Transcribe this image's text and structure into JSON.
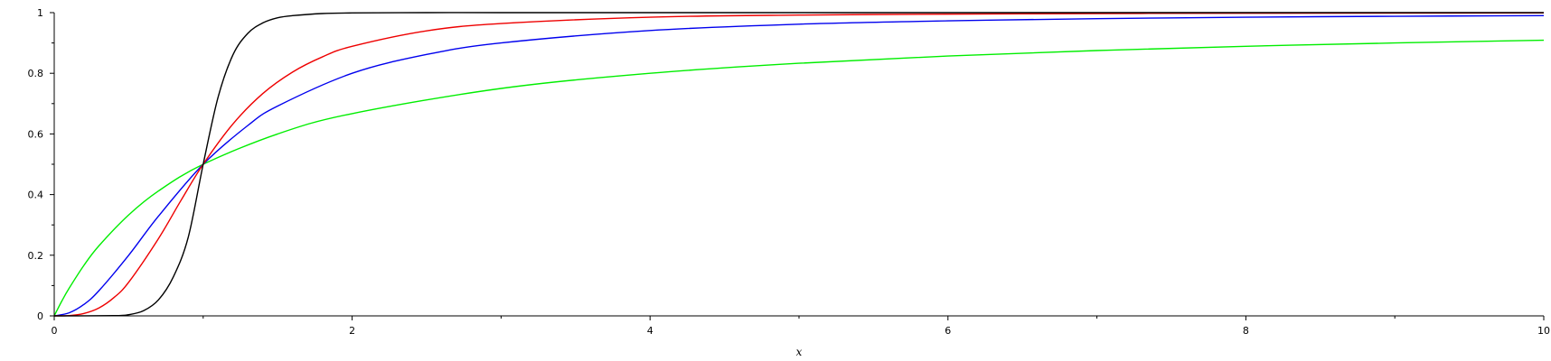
{
  "chart_data": {
    "type": "line",
    "title": "",
    "xlabel": "x",
    "ylabel": "",
    "xlim": [
      0,
      10
    ],
    "ylim": [
      0,
      1
    ],
    "x_ticks": [
      0,
      2,
      4,
      6,
      8,
      10
    ],
    "x_tick_labels": [
      "0",
      "2",
      "4",
      "6",
      "8",
      "10"
    ],
    "x_minor_ticks": [
      1,
      3,
      5,
      7,
      9
    ],
    "y_ticks": [
      0,
      0.2,
      0.4,
      0.6,
      0.8,
      1
    ],
    "y_tick_labels": [
      "0",
      "0.2",
      "0.4",
      "0.6",
      "0.8",
      "1"
    ],
    "y_minor_ticks": [
      0.1,
      0.3,
      0.5,
      0.7,
      0.9
    ],
    "grid": false,
    "legend": "none",
    "series": [
      {
        "color": "#00ee00",
        "x": [
          0,
          0.05,
          0.1,
          0.2,
          0.3,
          0.5,
          0.7,
          1,
          1.5,
          2,
          3,
          4,
          5,
          6,
          7,
          8,
          9,
          10
        ],
        "y": [
          0,
          0.048,
          0.091,
          0.167,
          0.231,
          0.333,
          0.412,
          0.5,
          0.6,
          0.667,
          0.75,
          0.8,
          0.833,
          0.857,
          0.875,
          0.889,
          0.9,
          0.909
        ]
      },
      {
        "color": "#0000ee",
        "x": [
          0,
          0.1,
          0.2,
          0.3,
          0.5,
          0.7,
          1,
          1.3,
          1.5,
          2,
          2.5,
          3,
          4,
          5,
          6,
          7,
          8,
          9,
          10
        ],
        "y": [
          0,
          0.01,
          0.038,
          0.083,
          0.2,
          0.329,
          0.5,
          0.628,
          0.692,
          0.8,
          0.862,
          0.9,
          0.941,
          0.962,
          0.973,
          0.98,
          0.985,
          0.988,
          0.99
        ]
      },
      {
        "color": "#ee0000",
        "x": [
          0,
          0.1,
          0.2,
          0.3,
          0.4,
          0.5,
          0.7,
          0.85,
          1,
          1.2,
          1.4,
          1.6,
          1.8,
          2,
          2.5,
          3,
          4,
          5,
          6,
          7,
          8,
          10
        ],
        "y": [
          0,
          0.001,
          0.008,
          0.026,
          0.06,
          0.111,
          0.255,
          0.38,
          0.5,
          0.633,
          0.733,
          0.804,
          0.854,
          0.889,
          0.94,
          0.964,
          0.985,
          0.992,
          0.995,
          0.997,
          0.998,
          0.999
        ]
      },
      {
        "color": "#000000",
        "x": [
          0,
          0.4,
          0.5,
          0.6,
          0.7,
          0.8,
          0.9,
          1,
          1.1,
          1.2,
          1.3,
          1.4,
          1.5,
          1.6,
          1.8,
          2,
          2.5,
          3,
          4,
          6,
          8,
          10
        ],
        "y": [
          0,
          0.0007,
          0.004,
          0.017,
          0.053,
          0.129,
          0.26,
          0.5,
          0.721,
          0.861,
          0.932,
          0.966,
          0.983,
          0.99,
          0.997,
          0.999,
          1,
          1,
          1,
          1,
          1,
          1
        ]
      }
    ]
  }
}
